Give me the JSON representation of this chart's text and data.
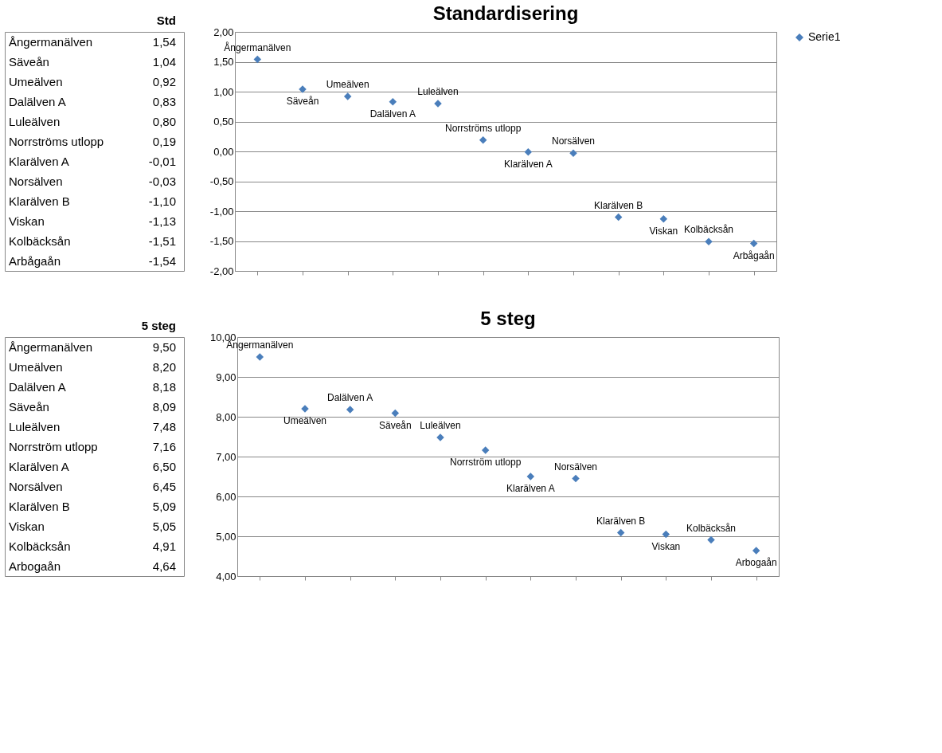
{
  "chart_data": [
    {
      "type": "other",
      "title": "Std",
      "categories": [
        "Ångermanälven",
        "Säveån",
        "Umeälven",
        "Dalälven A",
        "Luleälven",
        "Norrströms utlopp",
        "Klarälven A",
        "Norsälven",
        "Klarälven B",
        "Viskan",
        "Kolbäcksån",
        "Arbågaån"
      ],
      "data_labels": true,
      "value_labels": [
        "1,54",
        "1,04",
        "0,92",
        "0,83",
        "0,80",
        "0,19",
        "-0,01",
        "-0,03",
        "-1,10",
        "-1,13",
        "-1,51",
        "-1,54"
      ]
    },
    {
      "type": "scatter",
      "title": "Standardisering",
      "categories": [
        "Ångermanälven",
        "Säveån",
        "Umeälven",
        "Dalälven A",
        "Luleälven",
        "Norrströms utlopp",
        "Klarälven A",
        "Norsälven",
        "Klarälven B",
        "Viskan",
        "Kolbäcksån",
        "Arbågaån"
      ],
      "series": [
        {
          "name": "Serie1",
          "color": "#4a7ebb",
          "values": [
            1.54,
            1.04,
            0.92,
            0.83,
            0.8,
            0.19,
            -0.01,
            -0.03,
            -1.1,
            -1.13,
            -1.51,
            -1.54
          ]
        }
      ],
      "ylim": [
        -2,
        2
      ],
      "yticks": [
        {
          "value": -2,
          "label": "-2,00"
        },
        {
          "value": -1.5,
          "label": "-1,50"
        },
        {
          "value": -1,
          "label": "-1,00"
        },
        {
          "value": -0.5,
          "label": "-0,50"
        },
        {
          "value": 0,
          "label": "0,00"
        },
        {
          "value": 0.5,
          "label": "0,50"
        },
        {
          "value": 1,
          "label": "1,00"
        },
        {
          "value": 1.5,
          "label": "1,50"
        },
        {
          "value": 2,
          "label": "2,00"
        }
      ],
      "grid": "y",
      "legend": "right",
      "marker": "diamond",
      "tick_labels": "y"
    },
    {
      "type": "other",
      "title": "5 steg",
      "categories": [
        "Ångermanälven",
        "Umeälven",
        "Dalälven A",
        "Säveån",
        "Luleälven",
        "Norrström utlopp",
        "Klarälven A",
        "Norsälven",
        "Klarälven B",
        "Viskan",
        "Kolbäcksån",
        "Arbogaån"
      ],
      "data_labels": true,
      "value_labels": [
        "9,50",
        "8,20",
        "8,18",
        "8,09",
        "7,48",
        "7,16",
        "6,50",
        "6,45",
        "5,09",
        "5,05",
        "4,91",
        "4,64"
      ]
    },
    {
      "type": "scatter",
      "title": "5 steg",
      "categories": [
        "Ångermanälven",
        "Umeälven",
        "Dalälven A",
        "Säveån",
        "Luleälven",
        "Norrström utlopp",
        "Klarälven A",
        "Norsälven",
        "Klarälven B",
        "Viskan",
        "Kolbäcksån",
        "Arbogaån"
      ],
      "series": [
        {
          "name": "Serie1",
          "color": "#4a7ebb",
          "values": [
            9.5,
            8.2,
            8.18,
            8.09,
            7.48,
            7.16,
            6.5,
            6.45,
            5.09,
            5.05,
            4.91,
            4.64
          ]
        }
      ],
      "ylim": [
        4,
        10
      ],
      "yticks": [
        {
          "value": 4,
          "label": "4,00"
        },
        {
          "value": 5,
          "label": "5,00"
        },
        {
          "value": 6,
          "label": "6,00"
        },
        {
          "value": 7,
          "label": "7,00"
        },
        {
          "value": 8,
          "label": "8,00"
        },
        {
          "value": 9,
          "label": "9,00"
        },
        {
          "value": 10,
          "label": "10,00"
        }
      ],
      "grid": "y",
      "legend": "right",
      "marker": "diamond",
      "tick_labels": "y"
    }
  ]
}
